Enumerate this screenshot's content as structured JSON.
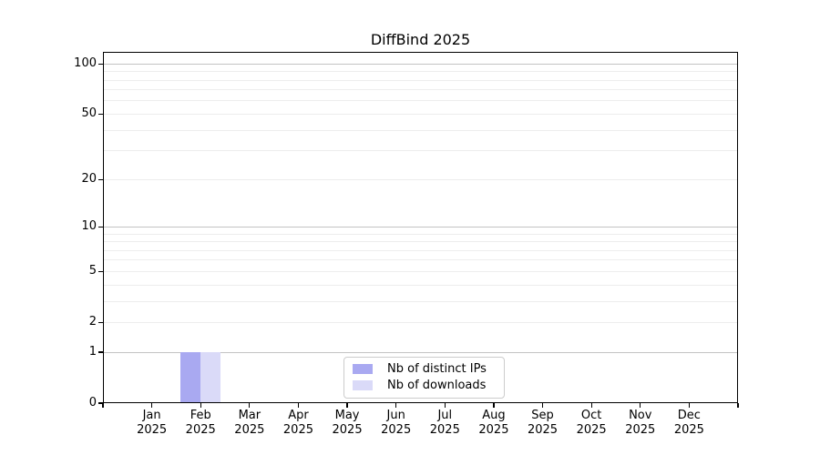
{
  "chart_data": {
    "type": "bar",
    "title": "DiffBind 2025",
    "y_scale": "log1p",
    "ylim": [
      0,
      118
    ],
    "y_ticks": [
      0,
      1,
      2,
      5,
      10,
      20,
      50,
      100
    ],
    "grid_major_at": [
      1,
      10,
      100
    ],
    "grid_minor_at": [
      2,
      3,
      4,
      5,
      6,
      7,
      8,
      9,
      20,
      30,
      40,
      50,
      60,
      70,
      80,
      90
    ],
    "categories": [
      {
        "month": "Jan",
        "year": "2025"
      },
      {
        "month": "Feb",
        "year": "2025"
      },
      {
        "month": "Mar",
        "year": "2025"
      },
      {
        "month": "Apr",
        "year": "2025"
      },
      {
        "month": "May",
        "year": "2025"
      },
      {
        "month": "Jun",
        "year": "2025"
      },
      {
        "month": "Jul",
        "year": "2025"
      },
      {
        "month": "Aug",
        "year": "2025"
      },
      {
        "month": "Sep",
        "year": "2025"
      },
      {
        "month": "Oct",
        "year": "2025"
      },
      {
        "month": "Nov",
        "year": "2025"
      },
      {
        "month": "Dec",
        "year": "2025"
      }
    ],
    "series": [
      {
        "key": "distinct-ips",
        "name": "Nb of distinct IPs",
        "color": "#a9a9f1",
        "values": [
          0,
          1,
          0,
          0,
          0,
          0,
          0,
          0,
          0,
          0,
          0,
          0
        ]
      },
      {
        "key": "downloads",
        "name": "Nb of downloads",
        "color": "#dadaf8",
        "values": [
          0,
          1,
          0,
          0,
          0,
          0,
          0,
          0,
          0,
          0,
          0,
          0
        ]
      }
    ],
    "legend_position": "lower center, inside plot"
  },
  "colors": {
    "background": "#ffffff",
    "axis": "#000000",
    "text": "#000000",
    "grid_major": "#c3c3c3",
    "grid_minor": "#ededed",
    "legend_border": "#cccccc"
  }
}
